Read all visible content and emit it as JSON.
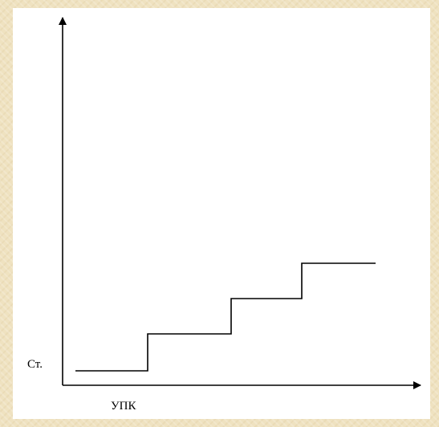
{
  "diagram": {
    "y_axis_label": "Ст.",
    "x_axis_label": "УПК"
  },
  "chart_data": {
    "type": "line",
    "x_axis_text": "УПК",
    "y_axis_text": "Ст.",
    "grid": false,
    "ticks": false
  },
  "colors": {
    "page_background": "#efe2c0",
    "canvas_background": "#ffffff",
    "stroke": "#000000"
  }
}
